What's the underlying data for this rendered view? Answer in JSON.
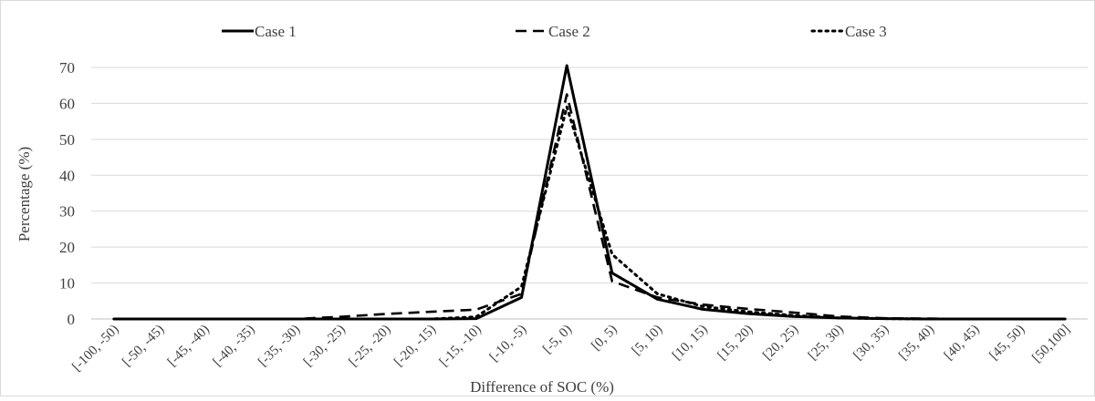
{
  "chart_data": {
    "type": "line",
    "title": "",
    "xlabel": "Difference of SOC (%)",
    "ylabel": "Percentage (%)",
    "ylim": [
      0,
      70
    ],
    "yticks": [
      0,
      10,
      20,
      30,
      40,
      50,
      60,
      70
    ],
    "grid": "horizontal",
    "legend_position": "top",
    "categories": [
      "[-100, -50)",
      "[-50, -45)",
      "[-45, -40)",
      "[-40, -35)",
      "[-35, -30)",
      "[-30, -25)",
      "[-25, -20)",
      "[-20, -15)",
      "[-15, -10)",
      "[-10, -5)",
      "[-5, 0)",
      "[0, 5)",
      "[5, 10)",
      "[10, 15)",
      "[15, 20)",
      "[20, 25)",
      "[25, 30)",
      "[30, 35)",
      "[35, 40)",
      "[40, 45)",
      "[45, 50)",
      "[50,100]"
    ],
    "series": [
      {
        "name": "Case 1",
        "style": "solid",
        "color": "#000000",
        "values": [
          0,
          0,
          0,
          0,
          0,
          0,
          0,
          0,
          0.1,
          6,
          70.5,
          12.8,
          5.5,
          2.7,
          1.5,
          0.7,
          0.3,
          0.1,
          0,
          0,
          0,
          0
        ]
      },
      {
        "name": "Case 2",
        "style": "dashed",
        "color": "#000000",
        "values": [
          0,
          0,
          0,
          0,
          0,
          0.6,
          1.4,
          2,
          2.6,
          7,
          62.5,
          10.5,
          6,
          4,
          2.8,
          1.8,
          0.7,
          0.2,
          0.1,
          0,
          0,
          0
        ]
      },
      {
        "name": "Case 3",
        "style": "dotted",
        "color": "#000000",
        "values": [
          0,
          0,
          0,
          0,
          0,
          0,
          0,
          0,
          0.6,
          9,
          59,
          18,
          7,
          3.5,
          2,
          1,
          0.3,
          0.1,
          0,
          0,
          0,
          0
        ]
      }
    ]
  }
}
